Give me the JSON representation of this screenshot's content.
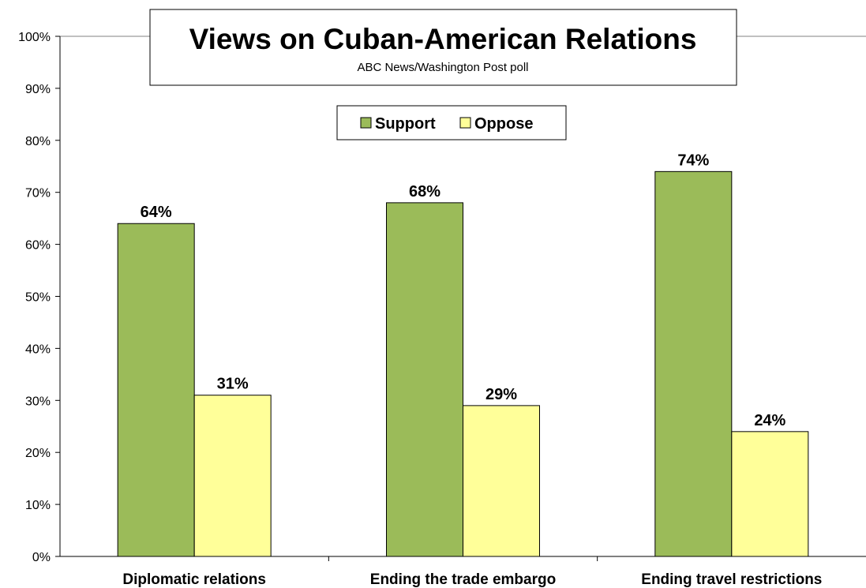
{
  "chart_data": {
    "type": "bar",
    "title": "Views on Cuban-American Relations",
    "subtitle": "ABC News/Washington  Post poll",
    "categories": [
      "Diplomatic relations",
      "Ending the trade embargo",
      "Ending travel restrictions"
    ],
    "series": [
      {
        "name": "Support",
        "values": [
          64,
          68,
          74
        ],
        "labels": [
          "64%",
          "68%",
          "74%"
        ],
        "color": "#9bbb59"
      },
      {
        "name": "Oppose",
        "values": [
          31,
          29,
          24
        ],
        "labels": [
          "31%",
          "29%",
          "24%"
        ],
        "color": "#ffff99"
      }
    ],
    "ylim": [
      0,
      100
    ],
    "yticks": [
      0,
      10,
      20,
      30,
      40,
      50,
      60,
      70,
      80,
      90,
      100
    ],
    "ytick_labels": [
      "0%",
      "10%",
      "20%",
      "30%",
      "40%",
      "50%",
      "60%",
      "70%",
      "80%",
      "90%",
      "100%"
    ],
    "grid": "major y gridline at 100% only",
    "legend": "top-center"
  }
}
